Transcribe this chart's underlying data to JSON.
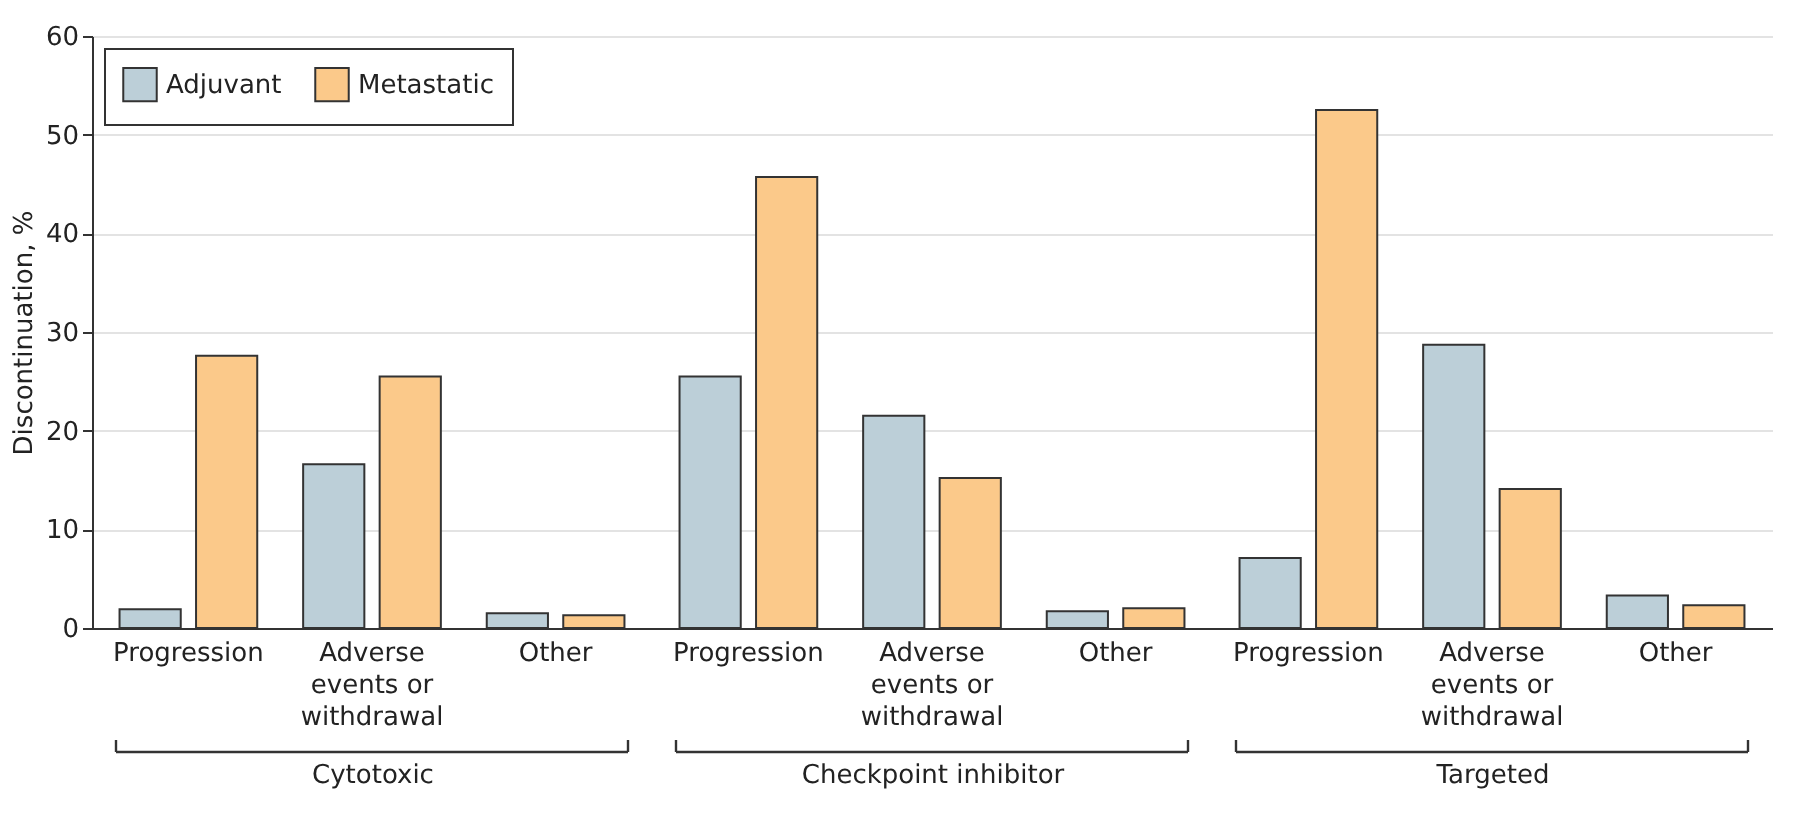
{
  "chart_data": [
    {
      "type": "bar",
      "xlabel": "Cytotoxic",
      "ylabel": "Discontinuation, %",
      "categories": [
        "Progression",
        "Adverse events or withdrawal",
        "Other"
      ],
      "series": [
        {
          "name": "Adjuvant",
          "color": "#bccfd8",
          "values": [
            1.9,
            16.6,
            1.5
          ]
        },
        {
          "name": "Metastatic",
          "color": "#fbc98a",
          "values": [
            27.6,
            25.5,
            1.3
          ]
        }
      ],
      "ylim": [
        0,
        60
      ],
      "yticks": [
        0,
        10,
        20,
        30,
        40,
        50,
        60
      ],
      "grid": "y",
      "legend": "top left"
    },
    {
      "type": "bar",
      "xlabel": "Checkpoint inhibitor",
      "categories": [
        "Progression",
        "Adverse events or withdrawal",
        "Other"
      ],
      "series": [
        {
          "name": "Adjuvant",
          "color": "#bccfd8",
          "values": [
            25.5,
            21.5,
            1.7
          ]
        },
        {
          "name": "Metastatic",
          "color": "#fbc98a",
          "values": [
            45.7,
            15.2,
            2.0
          ]
        }
      ],
      "ylim": [
        0,
        60
      ],
      "yticks": [
        0,
        10,
        20,
        30,
        40,
        50,
        60
      ],
      "grid": "y",
      "tick_labels": "x"
    },
    {
      "type": "bar",
      "xlabel": "Targeted",
      "categories": [
        "Progression",
        "Adverse events or withdrawal",
        "Other"
      ],
      "series": [
        {
          "name": "Adjuvant",
          "color": "#bccfd8",
          "values": [
            7.1,
            28.7,
            3.3
          ]
        },
        {
          "name": "Metastatic",
          "color": "#fbc98a",
          "values": [
            52.5,
            14.1,
            2.3
          ]
        }
      ],
      "ylim": [
        0,
        60
      ],
      "yticks": [
        0,
        10,
        20,
        30,
        40,
        50,
        60
      ],
      "grid": "y",
      "tick_labels": "x"
    }
  ]
}
